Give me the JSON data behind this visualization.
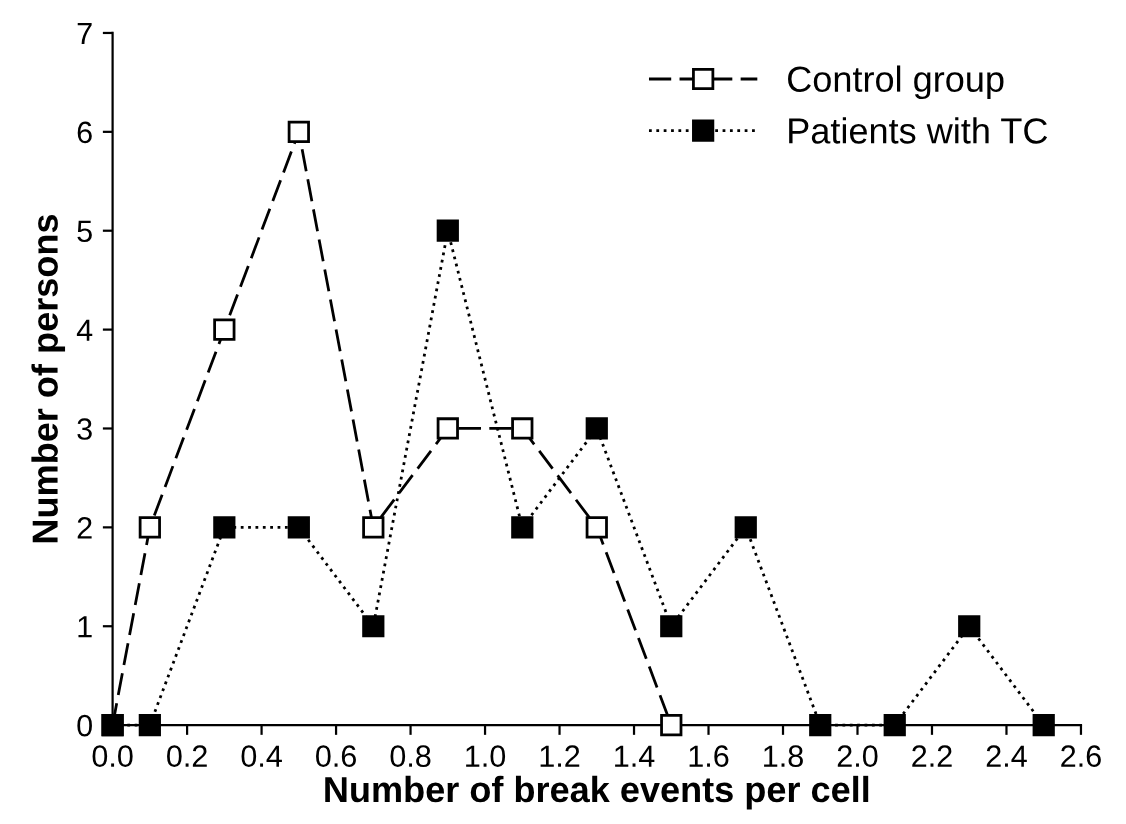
{
  "chart_data": {
    "type": "line",
    "xlabel": "Number of break events per cell",
    "ylabel": "Number of persons",
    "xlim": [
      0,
      2.6
    ],
    "ylim": [
      0,
      7
    ],
    "xticks": [
      {
        "value": 0,
        "label": "0.0"
      },
      {
        "value": 0.2,
        "label": "0.2"
      },
      {
        "value": 0.4,
        "label": "0.4"
      },
      {
        "value": 0.6,
        "label": "0.6"
      },
      {
        "value": 0.8,
        "label": "0.8"
      },
      {
        "value": 1.0,
        "label": "1.0"
      },
      {
        "value": 1.2,
        "label": "1.2"
      },
      {
        "value": 1.4,
        "label": "1.4"
      },
      {
        "value": 1.6,
        "label": "1.6"
      },
      {
        "value": 1.8,
        "label": "1.8"
      },
      {
        "value": 2.0,
        "label": "2.0"
      },
      {
        "value": 2.2,
        "label": "2.2"
      },
      {
        "value": 2.4,
        "label": "2.4"
      },
      {
        "value": 2.6,
        "label": "2.6"
      }
    ],
    "yticks": [
      0,
      1,
      2,
      3,
      4,
      5,
      6,
      7
    ],
    "grid": false,
    "legend": "top right",
    "marker": "square",
    "series": [
      {
        "name": "Control group",
        "color": "#000000",
        "line_style": "dashed",
        "x": [
          0.0,
          0.1,
          0.3,
          0.5,
          0.7,
          0.9,
          1.1,
          1.3,
          1.5
        ],
        "values": [
          0,
          2,
          4,
          6,
          2,
          3,
          3,
          2,
          0
        ]
      },
      {
        "name": "Patients with TC",
        "color": "#000000",
        "line_style": "dotted",
        "x": [
          0.0,
          0.1,
          0.3,
          0.5,
          0.7,
          0.9,
          1.1,
          1.3,
          1.5,
          1.7,
          1.9,
          2.1,
          2.3,
          2.5
        ],
        "values": [
          0,
          0,
          2,
          2,
          1,
          5,
          2,
          3,
          1,
          2,
          0,
          0,
          1,
          0
        ]
      }
    ]
  }
}
